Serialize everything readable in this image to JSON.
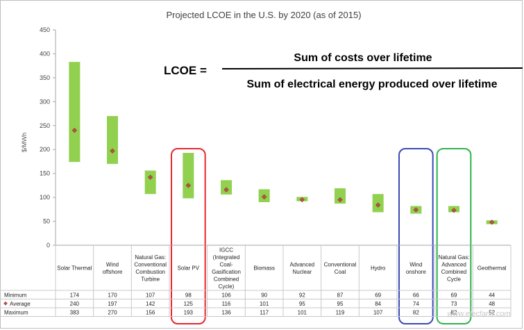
{
  "chart_data": {
    "type": "bar",
    "subtype": "floating-range-with-average-marker",
    "title": "Projected LCOE in the U.S. by 2020 (as of 2015)",
    "ylabel": "$/MWh",
    "ylim": [
      0,
      450
    ],
    "yticks": [
      0,
      50,
      100,
      150,
      200,
      250,
      300,
      350,
      400,
      450
    ],
    "grid": false,
    "categories": [
      [
        "Solar Thermal"
      ],
      [
        "Wind",
        "offshore"
      ],
      [
        "Natural Gas:",
        "Conventional",
        "Combustion",
        "Turbine"
      ],
      [
        "Solar PV"
      ],
      [
        "IGCC",
        "(Integrated",
        "Coal-",
        "Gasification",
        "Combined",
        "Cycle)"
      ],
      [
        "Biomass"
      ],
      [
        "Advanced",
        "Nuclear"
      ],
      [
        "Conventional",
        "Coal"
      ],
      [
        "Hydro"
      ],
      [
        "Wind",
        "onshore"
      ],
      [
        "Natural Gas:",
        "Advanced",
        "Combined",
        "Cycle"
      ],
      [
        "Geothermal"
      ]
    ],
    "series": [
      {
        "name": "Minimum",
        "values": [
          174,
          170,
          107,
          98,
          106,
          90,
          92,
          87,
          69,
          66,
          69,
          44
        ]
      },
      {
        "name": "Average",
        "values": [
          240,
          197,
          142,
          125,
          116,
          101,
          95,
          95,
          84,
          74,
          73,
          48
        ]
      },
      {
        "name": "Maximum",
        "values": [
          383,
          270,
          156,
          193,
          136,
          117,
          101,
          119,
          107,
          82,
          82,
          52
        ]
      }
    ],
    "table_display": {
      "Minimum": [
        "174",
        "170",
        "107",
        "98",
        "106",
        "90",
        "92",
        "87",
        "69",
        "66",
        "69",
        "44"
      ],
      "Average": [
        "240",
        "197",
        "142",
        "125",
        "116",
        "101",
        "95",
        "95",
        "84",
        "74",
        "73",
        "48"
      ],
      "Maximum": [
        "383",
        "270",
        "156",
        "193",
        "136",
        "117",
        "101",
        "119",
        "107",
        "82",
        "82",
        "52"
      ]
    },
    "highlights": [
      {
        "category_index": 3,
        "color": "#e8262e"
      },
      {
        "category_index": 9,
        "color": "#3a49b4"
      },
      {
        "category_index": 10,
        "color": "#2db34a"
      }
    ]
  },
  "formula": {
    "lhs": "LCOE =",
    "numerator": "Sum of costs over lifetime",
    "denominator": "Sum of electrical energy produced over lifetime"
  },
  "watermark": "www.elecfans.com",
  "colors": {
    "bar": "#92d050",
    "marker_fill": "#c0504d",
    "marker_stroke": "#7f3b1a",
    "axis": "#a6a6a6",
    "table_line": "#c8c8c8"
  }
}
